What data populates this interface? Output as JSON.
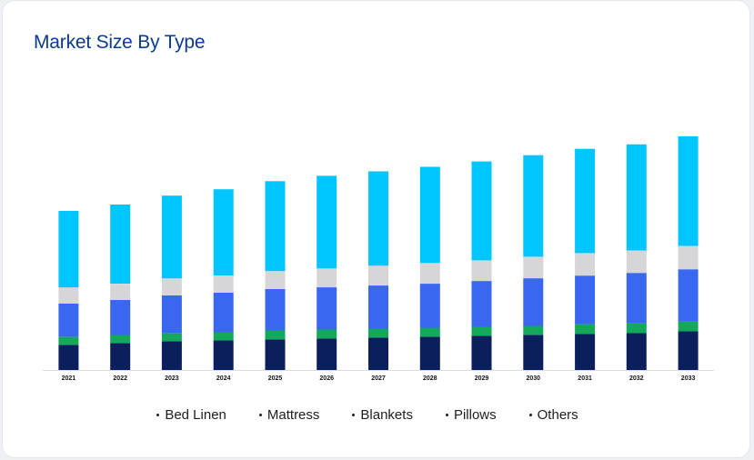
{
  "card": {
    "title": "Market Size By Type"
  },
  "chart_data": {
    "type": "bar",
    "stacked": true,
    "title": "Market Size By Type",
    "xlabel": "",
    "ylabel": "",
    "grid": false,
    "legend_position": "bottom-center",
    "categories": [
      "2021",
      "2022",
      "2023",
      "2024",
      "2025",
      "2026",
      "2027",
      "2028",
      "2029",
      "2030",
      "2031",
      "2032",
      "2033"
    ],
    "ylim": [
      0,
      270
    ],
    "series": [
      {
        "name": "Bed Linen",
        "color": "#0a1f5c",
        "values": [
          28,
          30,
          32,
          33,
          34,
          35,
          36,
          37,
          38,
          39,
          40,
          41,
          43
        ]
      },
      {
        "name": "Mattress",
        "color": "#14a85a",
        "values": [
          9,
          9,
          9,
          9,
          10,
          10,
          10,
          10,
          10,
          10,
          11,
          11,
          11
        ]
      },
      {
        "name": "Blankets",
        "color": "#3a67f0",
        "values": [
          37,
          39,
          42,
          44,
          46,
          47,
          48,
          49,
          51,
          53,
          54,
          56,
          58
        ]
      },
      {
        "name": "Pillows",
        "color": "#d6d6d8",
        "values": [
          18,
          18,
          19,
          19,
          20,
          21,
          22,
          23,
          23,
          24,
          25,
          25,
          26
        ]
      },
      {
        "name": "Others",
        "color": "#00c6ff",
        "values": [
          85,
          88,
          92,
          96,
          100,
          103,
          105,
          107,
          110,
          113,
          116,
          118,
          122
        ]
      }
    ]
  }
}
